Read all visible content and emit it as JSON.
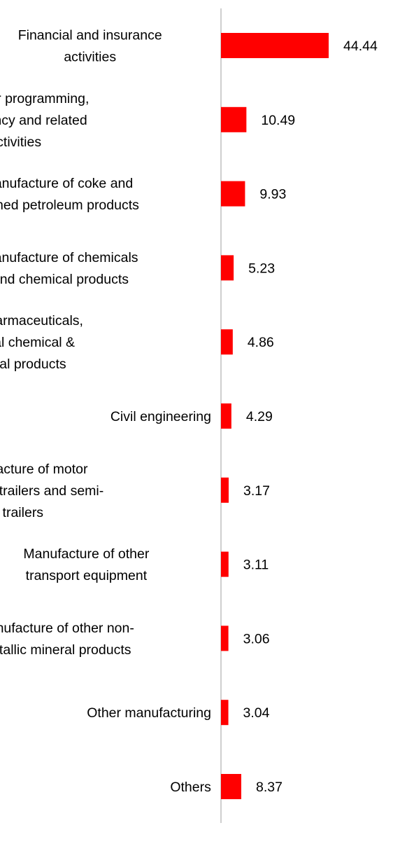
{
  "chart_data": {
    "type": "bar",
    "orientation": "horizontal",
    "title": "",
    "xlabel": "",
    "ylabel": "",
    "xlim": [
      0,
      44.44
    ],
    "grid": false,
    "legend": "none",
    "bar_color": "#ff0000",
    "axis_color": "#bfbfbf",
    "categories": [
      [
        "Financial and insurance",
        "activities"
      ],
      [
        "Computer programming,",
        "consultancy and related",
        "activities"
      ],
      [
        "Manufacture of coke and",
        "refined petroleum products"
      ],
      [
        "Manufacture of chemicals",
        "and chemical products"
      ],
      [
        "Mfg of pharmaceuticals,",
        "medicinal chemical &",
        "botanical products"
      ],
      [
        "Civil engineering"
      ],
      [
        "Manufacture of motor",
        "vehicles, trailers and semi-",
        "trailers"
      ],
      [
        "Manufacture of other",
        "transport equipment"
      ],
      [
        "Manufacture of other non-",
        "metallic mineral products"
      ],
      [
        "Other manufacturing"
      ],
      [
        "Others"
      ]
    ],
    "values": [
      44.44,
      10.49,
      9.93,
      5.23,
      4.86,
      4.29,
      3.17,
      3.11,
      3.06,
      3.04,
      8.37
    ],
    "value_labels": [
      "44.44",
      "10.49",
      "9.93",
      "5.23",
      "4.86",
      "4.29",
      "3.17",
      "3.11",
      "3.06",
      "3.04",
      "8.37"
    ]
  }
}
